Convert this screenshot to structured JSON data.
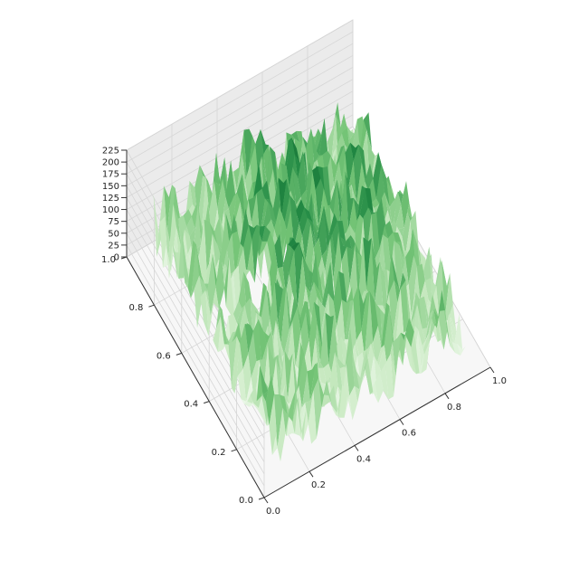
{
  "chart_data": {
    "type": "surface",
    "colormap": "Greens",
    "colors": [
      "#f7fcf5",
      "#c7e9c0",
      "#74c476",
      "#238b45",
      "#00441b"
    ],
    "x_ticks": [
      "0.0",
      "0.2",
      "0.4",
      "0.6",
      "0.8",
      "1.0"
    ],
    "y_ticks": [
      "0.0",
      "0.2",
      "0.4",
      "0.6",
      "0.8",
      "1.0"
    ],
    "z_ticks": [
      "0",
      "25",
      "50",
      "75",
      "100",
      "125",
      "150",
      "175",
      "200",
      "225"
    ],
    "xlim": [
      0,
      1
    ],
    "ylim": [
      0,
      1
    ],
    "zlim": [
      0,
      225
    ],
    "grid": true
  }
}
